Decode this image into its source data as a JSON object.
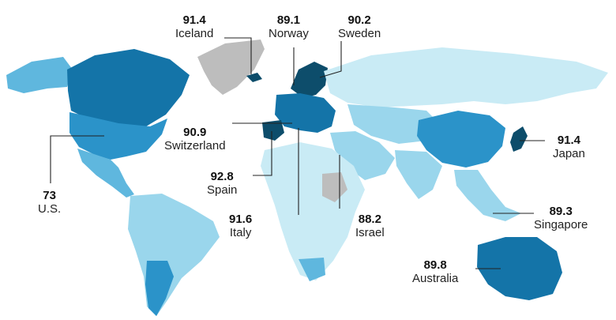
{
  "map": {
    "palette": {
      "darkest": "#0d4d6b",
      "dark": "#1474a8",
      "mid": "#2b93c9",
      "light": "#5fb7de",
      "lighter": "#9ad6ec",
      "lightest": "#c9ebf5",
      "no_data": "#bdbdbd"
    },
    "callouts": [
      {
        "id": "iceland",
        "value": "91.4",
        "name": "Iceland"
      },
      {
        "id": "norway",
        "value": "89.1",
        "name": "Norway"
      },
      {
        "id": "sweden",
        "value": "90.2",
        "name": "Sweden"
      },
      {
        "id": "switzerland",
        "value": "90.9",
        "name": "Switzerland"
      },
      {
        "id": "spain",
        "value": "92.8",
        "name": "Spain"
      },
      {
        "id": "italy",
        "value": "91.6",
        "name": "Italy"
      },
      {
        "id": "israel",
        "value": "88.2",
        "name": "Israel"
      },
      {
        "id": "us",
        "value": "73",
        "name": "U.S."
      },
      {
        "id": "japan",
        "value": "91.4",
        "name": "Japan"
      },
      {
        "id": "singapore",
        "value": "89.3",
        "name": "Singapore"
      },
      {
        "id": "australia",
        "value": "89.8",
        "name": "Australia"
      }
    ]
  }
}
